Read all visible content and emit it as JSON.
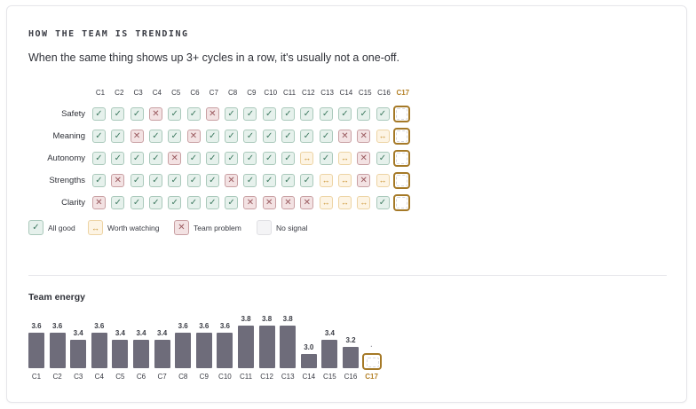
{
  "header": {
    "eyebrow": "HOW THE TEAM IS TRENDING",
    "subtitle": "When the same thing shows up 3+ cycles in a row, it's usually not a one-off."
  },
  "cycles": [
    "C1",
    "C2",
    "C3",
    "C4",
    "C5",
    "C6",
    "C7",
    "C8",
    "C9",
    "C10",
    "C11",
    "C12",
    "C13",
    "C14",
    "C15",
    "C16",
    "C17"
  ],
  "current_cycle": "C17",
  "icons": {
    "good": "✓",
    "watch": "↔",
    "problem": "✕"
  },
  "rows": [
    {
      "label": "Safety",
      "cells": [
        "good",
        "good",
        "good",
        "problem",
        "good",
        "good",
        "problem",
        "good",
        "good",
        "good",
        "good",
        "good",
        "good",
        "good",
        "good",
        "good",
        "empty"
      ]
    },
    {
      "label": "Meaning",
      "cells": [
        "good",
        "good",
        "problem",
        "good",
        "good",
        "problem",
        "good",
        "good",
        "good",
        "good",
        "good",
        "good",
        "good",
        "problem",
        "problem",
        "watch",
        "empty"
      ]
    },
    {
      "label": "Autonomy",
      "cells": [
        "good",
        "good",
        "good",
        "good",
        "problem",
        "good",
        "good",
        "good",
        "good",
        "good",
        "good",
        "watch",
        "good",
        "watch",
        "problem",
        "good",
        "empty"
      ]
    },
    {
      "label": "Strengths",
      "cells": [
        "good",
        "problem",
        "good",
        "good",
        "good",
        "good",
        "good",
        "problem",
        "good",
        "good",
        "good",
        "good",
        "watch",
        "watch",
        "problem",
        "watch",
        "empty"
      ]
    },
    {
      "label": "Clarity",
      "cells": [
        "problem",
        "good",
        "good",
        "good",
        "good",
        "good",
        "good",
        "good",
        "problem",
        "problem",
        "problem",
        "problem",
        "watch",
        "watch",
        "watch",
        "good",
        "empty"
      ]
    }
  ],
  "legend": [
    {
      "status": "good",
      "icon": "check-icon",
      "label": "All good"
    },
    {
      "status": "watch",
      "icon": "arrows-horizontal-icon",
      "label": "Worth watching"
    },
    {
      "status": "problem",
      "icon": "x-icon",
      "label": "Team problem"
    },
    {
      "status": "empty",
      "icon": "",
      "label": "No signal"
    }
  ],
  "energy": {
    "title": "Team energy",
    "pending_label": "·",
    "colors": {
      "bar": "#6e6c7a",
      "current": "#b5832b"
    }
  },
  "chart_data": {
    "type": "bar",
    "categories": [
      "C1",
      "C2",
      "C3",
      "C4",
      "C5",
      "C6",
      "C7",
      "C8",
      "C9",
      "C10",
      "C11",
      "C12",
      "C13",
      "C14",
      "C15",
      "C16",
      "C17"
    ],
    "values": [
      3.6,
      3.6,
      3.4,
      3.6,
      3.4,
      3.4,
      3.4,
      3.6,
      3.6,
      3.6,
      3.8,
      3.8,
      3.8,
      3.0,
      3.4,
      3.2,
      null
    ],
    "labels": [
      "3.6",
      "3.6",
      "3.4",
      "3.6",
      "3.4",
      "3.4",
      "3.4",
      "3.6",
      "3.6",
      "3.6",
      "3.8",
      "3.8",
      "3.8",
      "3.0",
      "3.4",
      "3.2",
      ""
    ],
    "title": "Team energy",
    "xlabel": "",
    "ylabel": ""
  }
}
